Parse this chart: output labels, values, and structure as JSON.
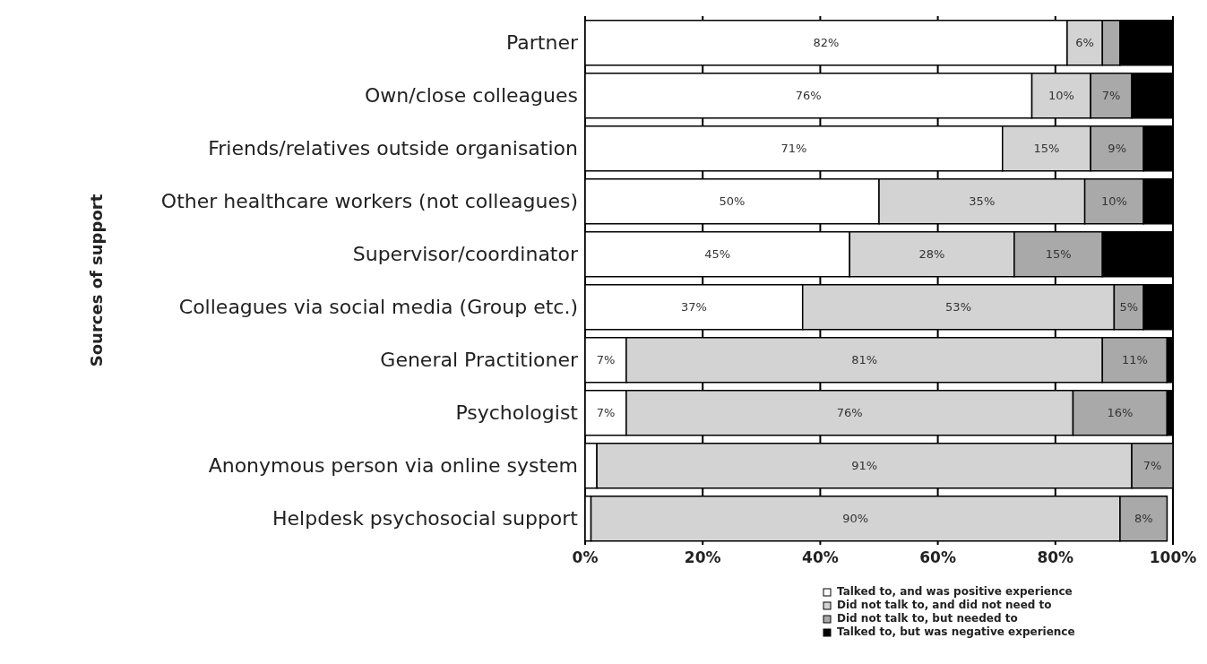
{
  "chart_data": {
    "type": "bar",
    "orientation": "horizontal",
    "stacked": true,
    "ylabel": "Sources of support",
    "categories": [
      "Partner",
      "Own/close colleagues",
      "Friends/relatives outside organisation",
      "Other healthcare workers (not colleagues)",
      "Supervisor/coordinator",
      "Colleagues via social media (Group etc.)",
      "General Practitioner",
      "Psychologist",
      "Anonymous person via online system",
      "Helpdesk psychosocial support"
    ],
    "series": [
      {
        "name": "Talked to, and was positive experience",
        "color": "#ffffff",
        "values": [
          82,
          76,
          71,
          50,
          45,
          37,
          7,
          7,
          2,
          1
        ],
        "value_labels": [
          "82%",
          "76%",
          "71%",
          "50%",
          "45%",
          "37%",
          "7%",
          "7%",
          null,
          null
        ]
      },
      {
        "name": "Did not talk to, and did not need to",
        "color": "#d3d3d3",
        "values": [
          6,
          10,
          15,
          35,
          28,
          53,
          81,
          76,
          91,
          90
        ],
        "value_labels": [
          "6%",
          "10%",
          "15%",
          "35%",
          "28%",
          "53%",
          "81%",
          "76%",
          "91%",
          "90%"
        ]
      },
      {
        "name": "Did not talk to, but needed to",
        "color": "#a9a9a9",
        "values": [
          3,
          7,
          9,
          10,
          15,
          5,
          11,
          16,
          7,
          8
        ],
        "value_labels": [
          null,
          "7%",
          "9%",
          "10%",
          "15%",
          "5%",
          "11%",
          "16%",
          "7%",
          "8%"
        ]
      },
      {
        "name": "Talked to, but was negative experience",
        "color": "#000000",
        "values": [
          9,
          7,
          5,
          5,
          12,
          5,
          1,
          1,
          0,
          0
        ]
      }
    ],
    "xlim": [
      0,
      100
    ],
    "xticks": [
      {
        "value": 0,
        "label": "0%"
      },
      {
        "value": 20,
        "label": "20%"
      },
      {
        "value": 40,
        "label": "40%"
      },
      {
        "value": 60,
        "label": "60%"
      },
      {
        "value": 80,
        "label": "80%"
      },
      {
        "value": 100,
        "label": "100%"
      }
    ],
    "grid": "x",
    "legend": "bottom"
  }
}
